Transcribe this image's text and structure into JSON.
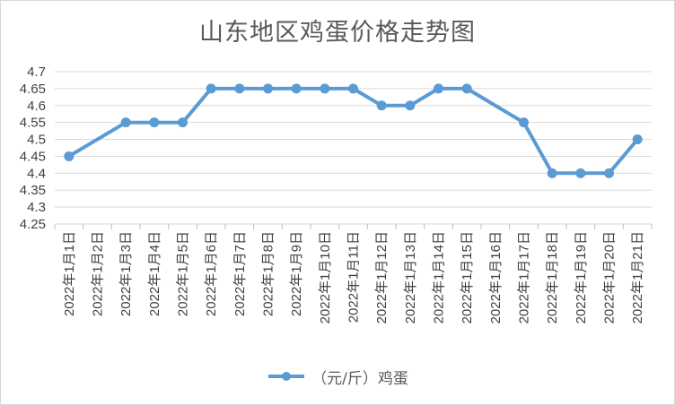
{
  "chart_data": {
    "type": "line",
    "title": "山东地区鸡蛋价格走势图",
    "xlabel": "",
    "ylabel": "",
    "ylim": [
      4.25,
      4.7
    ],
    "yticks": [
      "4.7",
      "4.65",
      "4.6",
      "4.55",
      "4.5",
      "4.45",
      "4.4",
      "4.35",
      "4.3",
      "4.25"
    ],
    "ytick_values": [
      4.7,
      4.65,
      4.6,
      4.55,
      4.5,
      4.45,
      4.4,
      4.35,
      4.3,
      4.25
    ],
    "categories": [
      "2022年1月1日",
      "2022年1月2日",
      "2022年1月3日",
      "2022年1月4日",
      "2022年1月5日",
      "2022年1月6日",
      "2022年1月7日",
      "2022年1月8日",
      "2022年1月9日",
      "2022年1月10日",
      "2022年1月11日",
      "2022年1月12日",
      "2022年1月13日",
      "2022年1月14日",
      "2022年1月15日",
      "2022年1月16日",
      "2022年1月17日",
      "2022年1月18日",
      "2022年1月19日",
      "2022年1月20日",
      "2022年1月21日"
    ],
    "series": [
      {
        "name": "（元/斤）鸡蛋",
        "color": "#5b9bd5",
        "values": [
          4.45,
          null,
          4.55,
          4.55,
          4.55,
          4.65,
          4.65,
          4.65,
          4.65,
          4.65,
          4.65,
          4.6,
          4.6,
          4.65,
          4.65,
          null,
          4.55,
          4.4,
          4.4,
          4.4,
          4.5
        ]
      }
    ],
    "grid": true,
    "legend": "bottom"
  },
  "colors": {
    "gridline": "#d9d9d9",
    "axis": "#bfbfbf",
    "text": "#404040",
    "series": "#5b9bd5"
  }
}
